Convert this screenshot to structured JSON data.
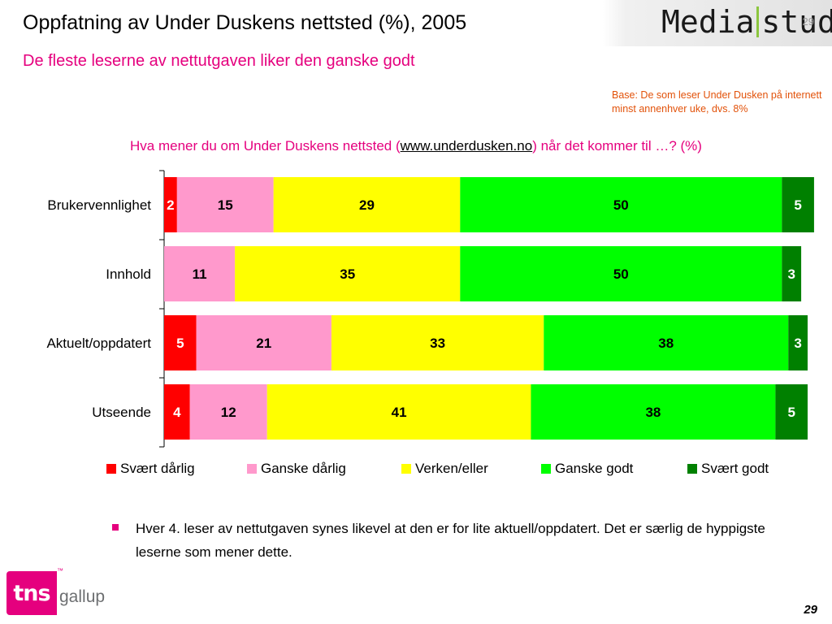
{
  "header": {
    "title": "Oppfatning av Under Duskens nettsted (%), 2005",
    "subtitle": "De fleste leserne av nettutgaven liker den ganske godt"
  },
  "logo": {
    "left": "Media",
    "right": "stud",
    "corner_number": "29"
  },
  "base_note": "Base: De som leser Under Dusken på internett minst annenhver uke, dvs. 8%",
  "question": {
    "prefix": "Hva mener du om Under Duskens nettsted (",
    "url": "www.underdusken.no",
    "suffix": ") når det kommer til …? (%)"
  },
  "chart_data": {
    "type": "bar",
    "orientation": "horizontal",
    "stacked": true,
    "categories": [
      "Brukervennlighet",
      "Innhold",
      "Aktuelt/oppdatert",
      "Utseende"
    ],
    "series": [
      {
        "name": "Svært dårlig",
        "color": "#ff0000",
        "label_color": "#ffffff",
        "values": [
          2,
          0,
          5,
          4
        ]
      },
      {
        "name": "Ganske dårlig",
        "color": "#ff99cc",
        "label_color": "#000000",
        "values": [
          15,
          11,
          21,
          12
        ]
      },
      {
        "name": "Verken/eller",
        "color": "#ffff00",
        "label_color": "#000000",
        "values": [
          29,
          35,
          33,
          41
        ]
      },
      {
        "name": "Ganske godt",
        "color": "#00ff00",
        "label_color": "#000000",
        "values": [
          50,
          50,
          38,
          38
        ]
      },
      {
        "name": "Svært godt",
        "color": "#008000",
        "label_color": "#ffffff",
        "values": [
          5,
          3,
          3,
          5
        ]
      }
    ],
    "xlim": [
      0,
      100
    ],
    "legend_position": "bottom",
    "grid": false
  },
  "bullet": "Hver 4. leser av nettutgaven synes likevel at den er for lite aktuell/oppdatert. Det er særlig de hyppigste leserne som mener dette.",
  "footer": {
    "tns": "tns",
    "gallup": "gallup",
    "page_number": "29"
  }
}
